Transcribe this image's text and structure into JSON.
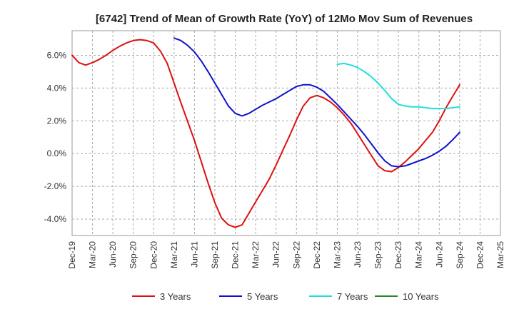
{
  "chart_data": {
    "type": "line",
    "title": "[6742]  Trend of Mean of Growth Rate (YoY) of 12Mo Mov Sum of Revenues",
    "xlabel": "",
    "ylabel": "",
    "ylim": [
      -5.0,
      7.5
    ],
    "yticks": [
      -4.0,
      -2.0,
      0.0,
      2.0,
      4.0,
      6.0
    ],
    "ytick_labels": [
      "-4.0%",
      "-2.0%",
      "0.0%",
      "2.0%",
      "4.0%",
      "6.0%"
    ],
    "x_categories": [
      "Dec-19",
      "Mar-20",
      "Jun-20",
      "Sep-20",
      "Dec-20",
      "Mar-21",
      "Jun-21",
      "Sep-21",
      "Dec-21",
      "Mar-22",
      "Jun-22",
      "Sep-22",
      "Dec-22",
      "Mar-23",
      "Jun-23",
      "Sep-23",
      "Dec-23",
      "Mar-24",
      "Jun-24",
      "Sep-24",
      "Dec-24",
      "Mar-25"
    ],
    "grid": true,
    "legend_position": "bottom",
    "series": [
      {
        "name": "3 Years",
        "color": "#dd1111",
        "start_index": 0,
        "values": [
          6.0,
          5.55,
          5.4,
          5.55,
          5.75,
          6.0,
          6.3,
          6.55,
          6.75,
          6.9,
          6.95,
          6.9,
          6.75,
          6.25,
          5.5,
          4.3,
          3.1,
          1.95,
          0.8,
          -0.5,
          -1.8,
          -3.0,
          -3.95,
          -4.35,
          -4.5,
          -4.35,
          -3.65,
          -2.95,
          -2.25,
          -1.55,
          -0.7,
          0.2,
          1.1,
          2.05,
          2.9,
          3.4,
          3.55,
          3.4,
          3.15,
          2.8,
          2.35,
          1.85,
          1.2,
          0.55,
          -0.1,
          -0.75,
          -1.05,
          -1.1,
          -0.85,
          -0.5,
          -0.1,
          0.3,
          0.8,
          1.3,
          2.0,
          2.8,
          3.5,
          4.2
        ]
      },
      {
        "name": "5 Years",
        "color": "#1111cc",
        "start_index": 15,
        "values": [
          7.05,
          6.9,
          6.6,
          6.2,
          5.65,
          5.0,
          4.3,
          3.6,
          2.9,
          2.45,
          2.3,
          2.45,
          2.7,
          2.95,
          3.15,
          3.35,
          3.6,
          3.85,
          4.1,
          4.2,
          4.2,
          4.05,
          3.8,
          3.4,
          3.0,
          2.55,
          2.1,
          1.65,
          1.15,
          0.6,
          0.05,
          -0.45,
          -0.75,
          -0.8,
          -0.75,
          -0.6,
          -0.45,
          -0.3,
          -0.1,
          0.15,
          0.45,
          0.85,
          1.3
        ]
      },
      {
        "name": "7 Years",
        "color": "#22dddd",
        "start_index": 39,
        "values": [
          5.45,
          5.5,
          5.4,
          5.25,
          5.0,
          4.7,
          4.3,
          3.85,
          3.35,
          3.0,
          2.9,
          2.85,
          2.85,
          2.8,
          2.75,
          2.75,
          2.75,
          2.8,
          2.85
        ]
      },
      {
        "name": "10 Years",
        "color": "#228822",
        "start_index": 0,
        "values": []
      }
    ]
  }
}
